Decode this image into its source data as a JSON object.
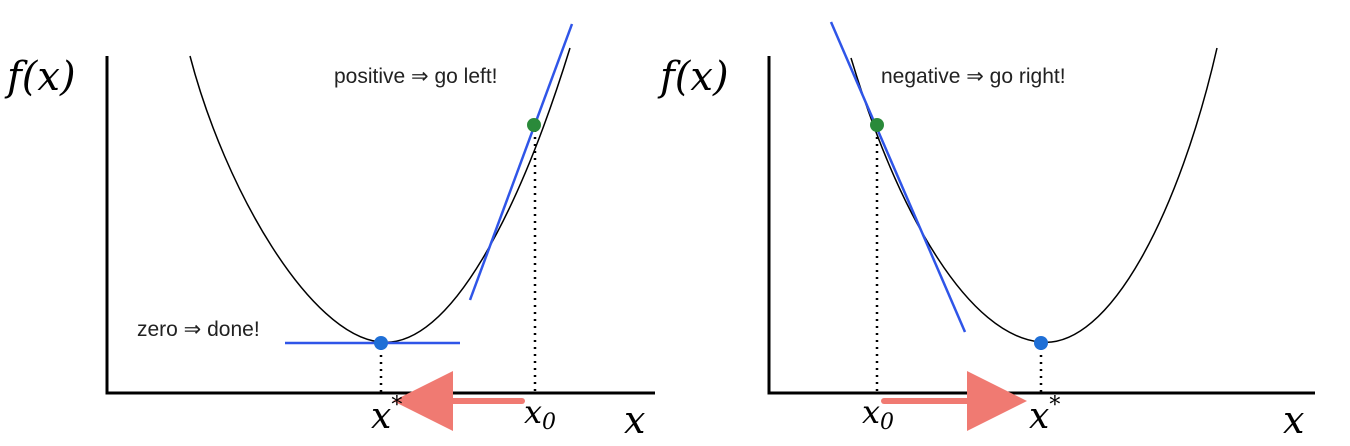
{
  "panels": {
    "left": {
      "y_axis_label": "f(x)",
      "x_axis_label": "x",
      "annotation_slope": "positive ⇒ go left!",
      "annotation_min": "zero ⇒ done!",
      "start_point_label": "x",
      "start_point_subscript": "0",
      "minimum_label": "x",
      "minimum_superscript": "*"
    },
    "right": {
      "y_axis_label": "f(x)",
      "x_axis_label": "x",
      "annotation_slope": "negative ⇒ go right!",
      "start_point_label": "x",
      "start_point_subscript": "0",
      "minimum_label": "x",
      "minimum_superscript": "*"
    }
  },
  "colors": {
    "curve": "#000000",
    "tangent": "#2f55e8",
    "start_point": "#2a8a3a",
    "minimum_point": "#1f6fd6",
    "arrow": "#f07a72"
  }
}
